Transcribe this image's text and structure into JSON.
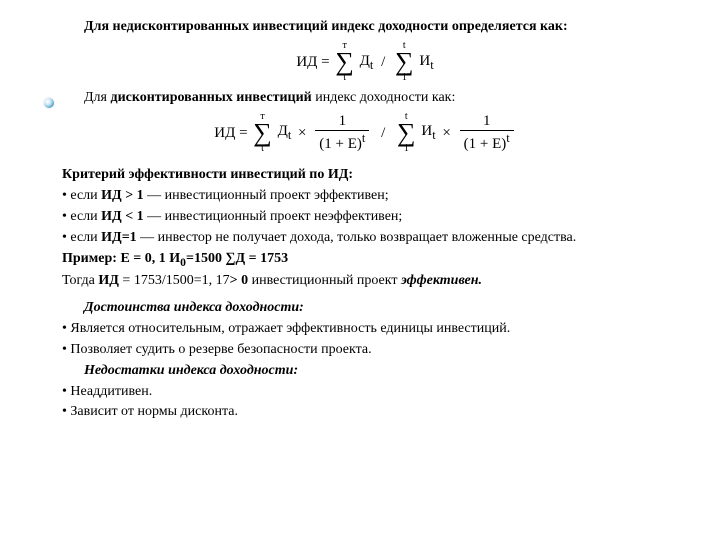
{
  "colors": {
    "text": "#000000",
    "bg": "#ffffff",
    "bullet_gradient": [
      "#ffffff",
      "#cfe8f5",
      "#5aa9cf",
      "#2a6f9e"
    ]
  },
  "fonts": {
    "family": "Times New Roman",
    "base_size": 14,
    "formula_size": 15,
    "sigma_size": 26
  },
  "h1": "Для недисконтированных инвестиций индекс доходности определяется как:",
  "f1": {
    "lhs": "ИД =",
    "sum1": {
      "top": "т",
      "sym": "∑",
      "bot": "t"
    },
    "t1": "Д",
    "sub1": "t",
    "div": "/",
    "sum2": {
      "top": "t",
      "sym": "∑",
      "bot": "1"
    },
    "t2": "И",
    "sub2": "t"
  },
  "h2_pre": "Для ",
  "h2_b": "дисконтированных инвестиций",
  "h2_post": " индекс доходности как:",
  "f2": {
    "lhs": "ИД =",
    "sumA": {
      "top": "т",
      "sym": "∑",
      "bot": "t"
    },
    "termA": "Д",
    "subA": "t",
    "times": "×",
    "frac1": {
      "num": "1",
      "den_pre": "(1 + E)",
      "den_sup": "t"
    },
    "div": "/",
    "sumB": {
      "top": "t",
      "sym": "∑",
      "bot": "1"
    },
    "termB": "И",
    "subB": "t",
    "frac2": {
      "num": "1",
      "den_pre": "(1 + E)",
      "den_sup": "t"
    }
  },
  "crit_h": "Критерий эффективности инвестиций по ИД:",
  "c1a": "если ",
  "c1b": "ИД > 1",
  "c1c": " — инвестиционный проект эффективен;",
  "c2a": "если ",
  "c2b": "ИД < 1",
  "c2c": " — инвестиционный проект неэффективен;",
  "c3a": "если ",
  "c3b": "ИД=1",
  "c3c": " — инвестор не получает дохода, только возвращает вложенные средства.",
  "ex_b": "Пример:",
  "ex_v": "  Е = 0, 1  И",
  "ex_sub": "0",
  "ex_v2": "=1500 ∑Д = 1753",
  "res_a": "Тогда  ",
  "res_b": "ИД",
  "res_c": " = 1753/1500=1, 17",
  "res_d": "> 0",
  "res_e": " инвестиционный проект ",
  "res_f": "эффективен.",
  "adv_h": "Достоинства индекса доходности:",
  "adv1": "Является относительным, отражает эффективность единицы инвестиций.",
  "adv2": "Позволяет судить о резерве безопасности проекта.",
  "dis_h": "Недостатки индекса доходности:",
  "dis1": "Неаддитивен.",
  "dis2": "Зависит от нормы дисконта.",
  "bul": "• "
}
